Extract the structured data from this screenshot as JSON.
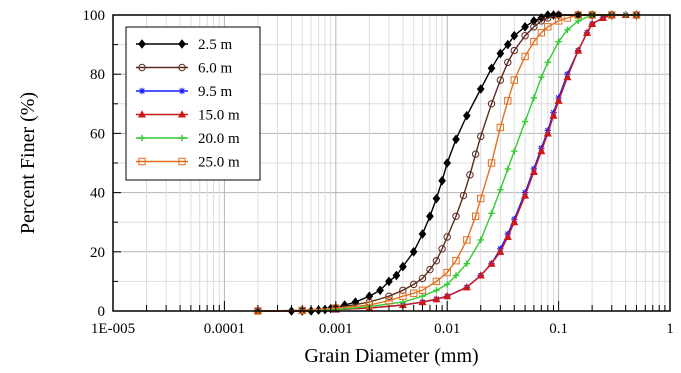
{
  "chart_data": {
    "type": "line",
    "xlabel": "Grain Diameter (mm)",
    "ylabel": "Percent Finer (%)",
    "xscale": "log",
    "xlim": [
      1e-05,
      1
    ],
    "ylim": [
      0,
      100
    ],
    "x_ticks": [
      {
        "value": 1e-05,
        "label": "1E-005"
      },
      {
        "value": 0.0001,
        "label": "0.0001"
      },
      {
        "value": 0.001,
        "label": "0.001"
      },
      {
        "value": 0.01,
        "label": "0.01"
      },
      {
        "value": 0.1,
        "label": "0.1"
      },
      {
        "value": 1,
        "label": "1"
      }
    ],
    "y_ticks": [
      {
        "value": 0,
        "label": "0"
      },
      {
        "value": 20,
        "label": "20"
      },
      {
        "value": 40,
        "label": "40"
      },
      {
        "value": 60,
        "label": "60"
      },
      {
        "value": 80,
        "label": "80"
      },
      {
        "value": 100,
        "label": "100"
      }
    ],
    "grid": true,
    "legend_position": "top-left",
    "series": [
      {
        "name": "2.5 m",
        "color": "#000000",
        "marker": "diamond-filled",
        "x": [
          0.0004,
          0.0005,
          0.0006,
          0.0007,
          0.0008,
          0.0009,
          0.001,
          0.0012,
          0.0015,
          0.002,
          0.0025,
          0.003,
          0.0035,
          0.004,
          0.005,
          0.006,
          0.007,
          0.008,
          0.009,
          0.01,
          0.012,
          0.015,
          0.02,
          0.025,
          0.03,
          0.035,
          0.04,
          0.05,
          0.06,
          0.07,
          0.08,
          0.09,
          0.1,
          0.15,
          0.2,
          0.3,
          0.5
        ],
        "y": [
          0,
          0,
          0,
          0.3,
          0.5,
          0.8,
          1,
          2,
          3,
          5,
          7,
          10,
          12,
          15,
          20,
          26,
          32,
          38,
          44,
          50,
          58,
          66,
          75,
          82,
          87,
          90,
          93,
          96,
          98,
          99,
          100,
          100,
          100,
          100,
          100,
          100,
          100
        ]
      },
      {
        "name": "6.0 m",
        "color": "#5c2a1e",
        "marker": "circle-open",
        "x": [
          0.0002,
          0.0005,
          0.001,
          0.002,
          0.003,
          0.004,
          0.005,
          0.006,
          0.007,
          0.008,
          0.009,
          0.01,
          0.012,
          0.014,
          0.016,
          0.018,
          0.02,
          0.025,
          0.03,
          0.035,
          0.04,
          0.05,
          0.06,
          0.07,
          0.08,
          0.1,
          0.15,
          0.2,
          0.3,
          0.5
        ],
        "y": [
          0,
          0.2,
          1,
          3,
          5,
          7,
          9,
          11,
          14,
          17,
          21,
          25,
          32,
          39,
          46,
          53,
          59,
          70,
          78,
          84,
          88,
          93,
          96,
          98,
          99,
          100,
          100,
          100,
          100,
          100
        ]
      },
      {
        "name": "9.5 m",
        "color": "#1a1aff",
        "marker": "star",
        "x": [
          0.0002,
          0.0005,
          0.001,
          0.002,
          0.004,
          0.006,
          0.008,
          0.01,
          0.015,
          0.02,
          0.025,
          0.03,
          0.035,
          0.04,
          0.05,
          0.06,
          0.07,
          0.08,
          0.09,
          0.1,
          0.12,
          0.15,
          0.18,
          0.2,
          0.25,
          0.3,
          0.4,
          0.5
        ],
        "y": [
          0,
          0,
          0.5,
          1,
          2,
          3,
          4,
          5,
          8,
          12,
          16,
          21,
          26,
          31,
          40,
          48,
          55,
          61,
          67,
          72,
          80,
          88,
          94,
          97,
          99,
          100,
          100,
          100
        ]
      },
      {
        "name": "15.0 m",
        "color": "#cc1a1a",
        "marker": "triangle-filled",
        "x": [
          0.0002,
          0.0005,
          0.001,
          0.002,
          0.004,
          0.006,
          0.008,
          0.01,
          0.015,
          0.02,
          0.025,
          0.03,
          0.035,
          0.04,
          0.05,
          0.06,
          0.07,
          0.08,
          0.09,
          0.1,
          0.12,
          0.15,
          0.18,
          0.2,
          0.25,
          0.3,
          0.4,
          0.5
        ],
        "y": [
          0,
          0,
          0.5,
          1,
          2,
          3,
          4,
          5,
          8,
          12,
          16,
          20,
          25,
          30,
          39,
          47,
          54,
          60,
          66,
          71,
          79,
          88,
          94,
          97,
          99,
          100,
          100,
          100
        ]
      },
      {
        "name": "20.0 m",
        "color": "#33cc33",
        "marker": "plus",
        "x": [
          0.0002,
          0.0005,
          0.001,
          0.002,
          0.004,
          0.006,
          0.008,
          0.01,
          0.012,
          0.015,
          0.02,
          0.025,
          0.03,
          0.035,
          0.04,
          0.05,
          0.06,
          0.07,
          0.08,
          0.1,
          0.12,
          0.15,
          0.2,
          0.3,
          0.4,
          0.5
        ],
        "y": [
          0,
          0.2,
          0.5,
          1.5,
          3,
          5,
          7,
          9,
          12,
          16,
          24,
          33,
          41,
          48,
          54,
          64,
          72,
          79,
          84,
          91,
          95,
          98,
          100,
          100,
          100,
          100
        ]
      },
      {
        "name": "25.0 m",
        "color": "#e07020",
        "marker": "square-open",
        "x": [
          0.0002,
          0.0005,
          0.001,
          0.002,
          0.003,
          0.004,
          0.005,
          0.006,
          0.008,
          0.01,
          0.012,
          0.015,
          0.018,
          0.02,
          0.025,
          0.03,
          0.035,
          0.04,
          0.05,
          0.06,
          0.07,
          0.08,
          0.1,
          0.12,
          0.15,
          0.2,
          0.3,
          0.5
        ],
        "y": [
          0,
          0.2,
          1,
          2,
          3.5,
          5,
          6,
          7,
          10,
          13,
          17,
          24,
          32,
          38,
          50,
          62,
          71,
          78,
          86,
          91,
          94,
          96,
          98,
          99,
          100,
          100,
          100,
          100
        ]
      }
    ]
  }
}
